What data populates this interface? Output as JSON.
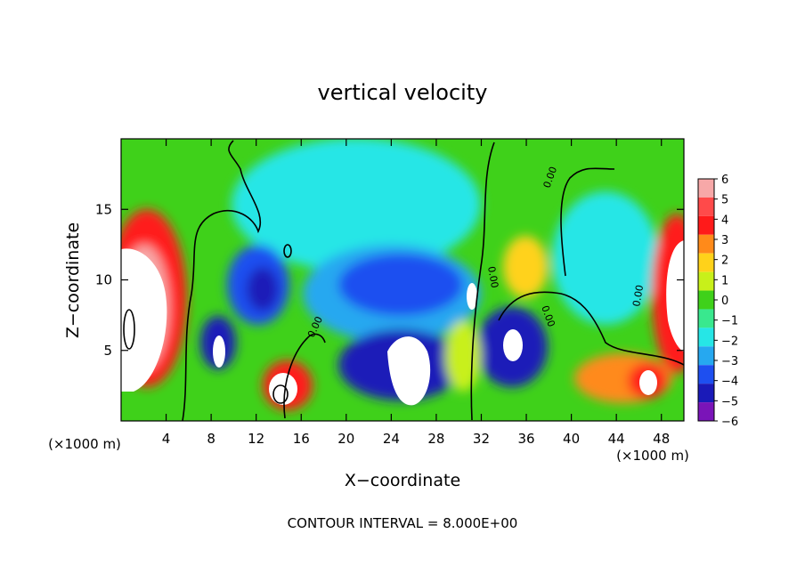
{
  "chart_data": {
    "type": "heatmap",
    "title": "vertical velocity",
    "xlabel": "X−coordinate",
    "ylabel": "Z−coordinate",
    "x_unit_label": "(×1000 m)",
    "y_unit_label": "(×1000 m)",
    "xlim": [
      0,
      50
    ],
    "ylim": [
      0,
      20
    ],
    "x_ticks": [
      4,
      8,
      12,
      16,
      20,
      24,
      28,
      32,
      36,
      40,
      44,
      48
    ],
    "y_ticks": [
      5,
      10,
      15
    ],
    "colorbar": {
      "levels": [
        6,
        5,
        4,
        3,
        2,
        1,
        0,
        -1,
        -2,
        -3,
        -4,
        -5,
        -6
      ],
      "tick_labels": [
        "6",
        "5",
        "4",
        "3",
        "2",
        "1",
        "0",
        "−1",
        "−2",
        "−3",
        "−4",
        "−5",
        "−6"
      ],
      "colors": [
        "#f7a8a8",
        "#ff4a4a",
        "#ff1a1a",
        "#ff8a1a",
        "#ffd21a",
        "#c8f01a",
        "#3fd11a",
        "#39e88e",
        "#26e6e6",
        "#26a8f0",
        "#1e4ff0",
        "#1a1ab8",
        "#7a14b8"
      ]
    },
    "contour_label": "0.00",
    "footer": "CONTOUR INTERVAL = 8.000E+00"
  }
}
